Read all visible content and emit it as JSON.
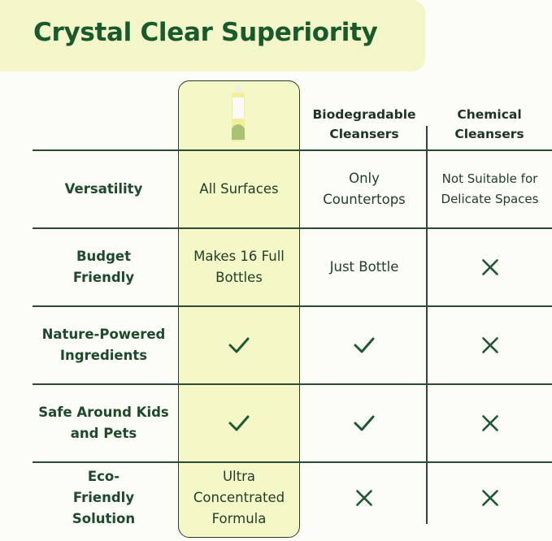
{
  "title": "Crystal Clear Superiority",
  "columns": [
    "",
    "Biodegradable Cleansers",
    "Chemical Cleansers"
  ],
  "product_image": "product-bottle",
  "colors": {
    "accent": "#175a2c",
    "highlight": "#f4f7c6",
    "text": "#1f3d2a"
  },
  "rows": [
    {
      "label": "Versatility",
      "cells": [
        {
          "type": "text",
          "text": "All Surfaces"
        },
        {
          "type": "text",
          "text": "Only Countertops"
        },
        {
          "type": "text",
          "text": "Not Suitable for Delicate Spaces"
        }
      ]
    },
    {
      "label": "Budget Friendly",
      "cells": [
        {
          "type": "text",
          "text": "Makes 16 Full Bottles"
        },
        {
          "type": "text",
          "text": "Just Bottle"
        },
        {
          "type": "cross"
        }
      ]
    },
    {
      "label": "Nature-Powered Ingredients",
      "cells": [
        {
          "type": "check"
        },
        {
          "type": "check"
        },
        {
          "type": "cross"
        }
      ]
    },
    {
      "label": "Safe Around Kids and Pets",
      "cells": [
        {
          "type": "check"
        },
        {
          "type": "check"
        },
        {
          "type": "cross"
        }
      ]
    },
    {
      "label": "Eco-Friendly Solution",
      "cells": [
        {
          "type": "text",
          "text": "Ultra Concentrated Formula"
        },
        {
          "type": "cross"
        },
        {
          "type": "cross"
        }
      ]
    }
  ]
}
